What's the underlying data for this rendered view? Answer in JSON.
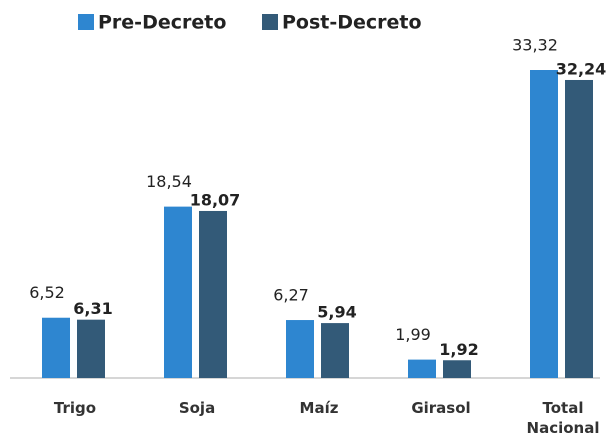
{
  "chart_data": {
    "type": "bar",
    "categories": [
      "Trigo",
      "Soja",
      "Maíz",
      "Girasol",
      "Total Nacional"
    ],
    "series": [
      {
        "name": "Pre-Decreto",
        "color": "#2e86d0",
        "values": [
          6.52,
          18.54,
          6.27,
          1.99,
          33.32
        ],
        "value_labels": [
          "6,52",
          "18,54",
          "6,27",
          "1,99",
          "33,32"
        ]
      },
      {
        "name": "Post-Decreto",
        "color": "#335a78",
        "values": [
          6.31,
          18.07,
          5.94,
          1.92,
          32.24
        ],
        "value_labels": [
          "6,31",
          "18,07",
          "5,94",
          "1,92",
          "32,24"
        ]
      }
    ],
    "legend": "top"
  }
}
